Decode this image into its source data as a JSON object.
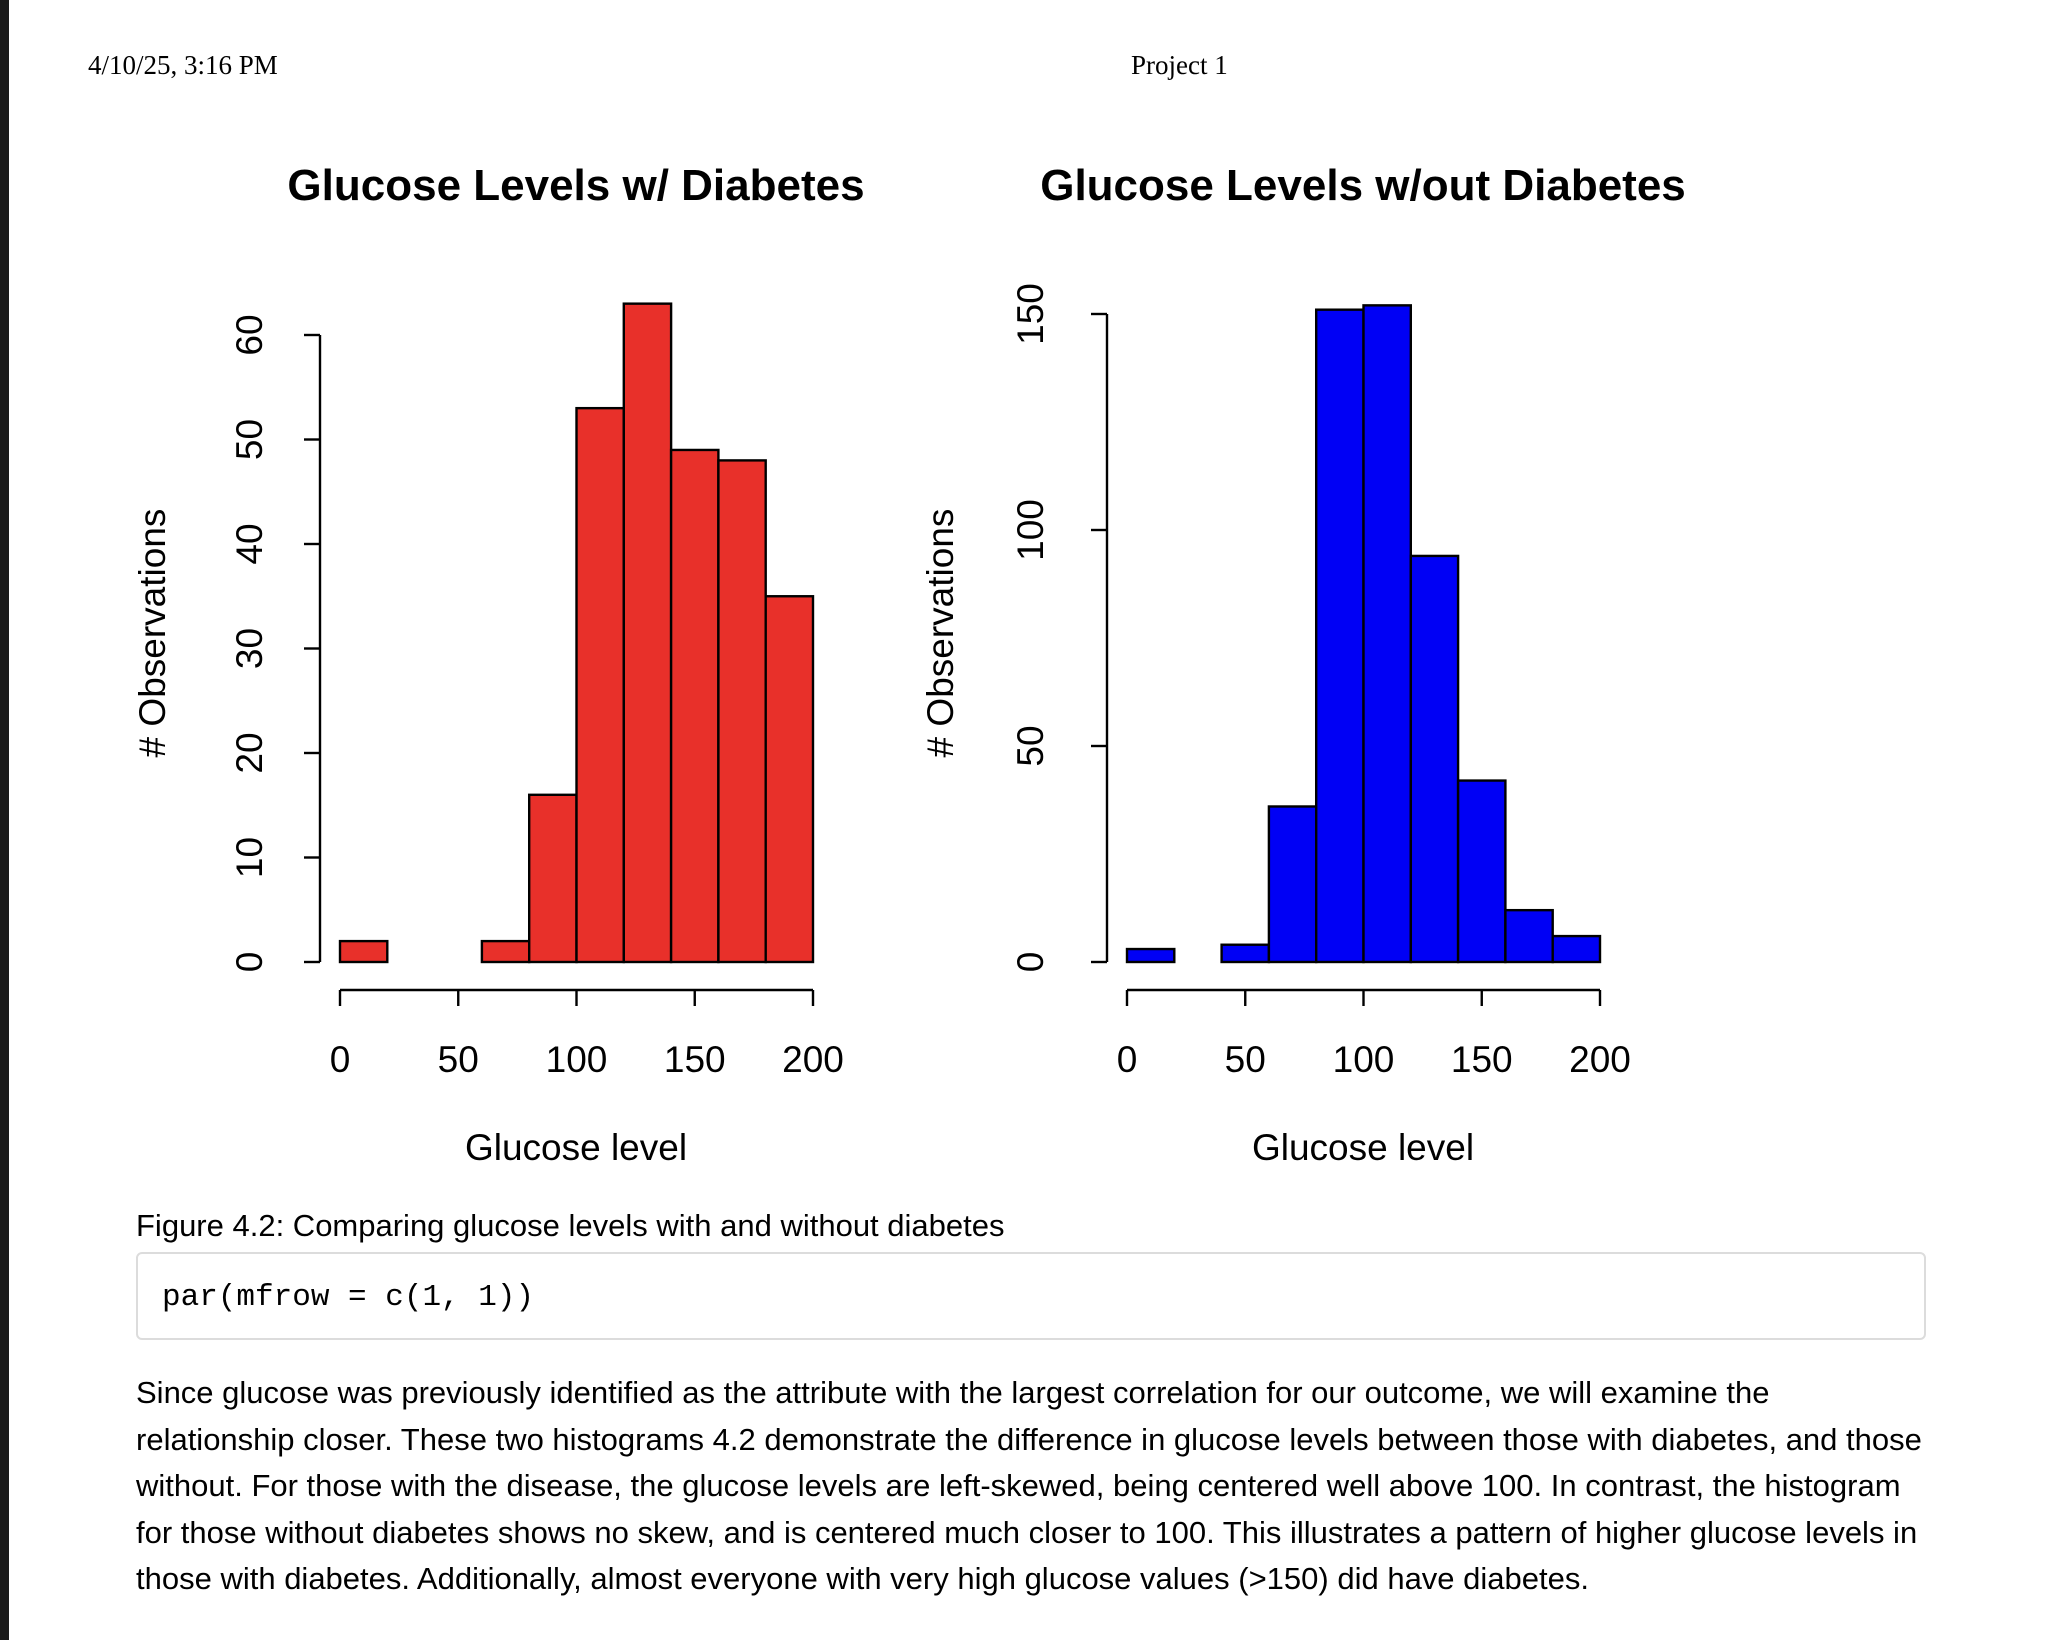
{
  "header": {
    "date": "4/10/25, 3:16 PM",
    "title": "Project 1"
  },
  "chart_data": [
    {
      "type": "bar",
      "title": "Glucose Levels w/ Diabetes",
      "xlabel": "Glucose level",
      "ylabel": "# Observations",
      "color": "#e8302a",
      "bin_edges": [
        0,
        20,
        40,
        60,
        80,
        100,
        120,
        140,
        160,
        180,
        200
      ],
      "values": [
        2,
        0,
        0,
        2,
        16,
        53,
        63,
        49,
        48,
        35
      ],
      "xlim": [
        0,
        200
      ],
      "ylim": [
        0,
        60
      ],
      "x_ticks": [
        0,
        50,
        100,
        150,
        200
      ],
      "y_ticks": [
        0,
        10,
        20,
        30,
        40,
        50,
        60
      ]
    },
    {
      "type": "bar",
      "title": "Glucose Levels w/out Diabetes",
      "xlabel": "Glucose level",
      "ylabel": "# Observations",
      "color": "#0000f5",
      "bin_edges": [
        0,
        20,
        40,
        60,
        80,
        100,
        120,
        140,
        160,
        180,
        200
      ],
      "values": [
        3,
        0,
        4,
        36,
        151,
        152,
        94,
        42,
        12,
        6
      ],
      "xlim": [
        0,
        200
      ],
      "ylim": [
        0,
        150
      ],
      "x_ticks": [
        0,
        50,
        100,
        150,
        200
      ],
      "y_ticks": [
        0,
        50,
        100,
        150
      ]
    }
  ],
  "caption": "Figure 4.2: Comparing glucose levels with and without diabetes",
  "code": "par(mfrow = c(1, 1))",
  "paragraph": "Since glucose was previously identified as the attribute with the largest correlation for our outcome, we will examine the relationship closer. These two histograms 4.2 demonstrate the difference in glucose levels between those with diabetes, and those without. For those with the disease, the glucose levels are left-skewed, being centered well above 100. In contrast, the histogram for those without diabetes shows no skew, and is centered much closer to 100. This illustrates a pattern of higher glucose levels in those with diabetes. Additionally, almost everyone with very high glucose values (>150) did have diabetes."
}
